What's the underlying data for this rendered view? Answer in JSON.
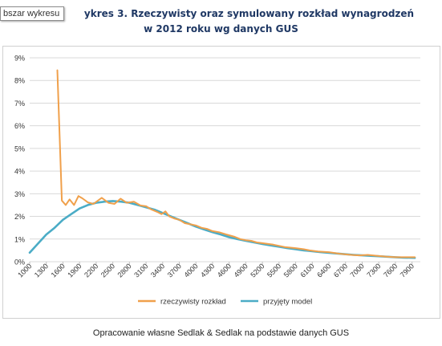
{
  "tooltip": {
    "text": "bszar wykresu"
  },
  "title": {
    "line1": "ykres 3. Rzeczywisty oraz symulowany rozkład wynagrodzeń",
    "line2": "w 2012 roku wg danych GUS"
  },
  "caption": "Opracowanie własne Sedlak & Sedlak na podstawie danych GUS",
  "colors": {
    "series1": "#F0A04B",
    "series2": "#4BACC6",
    "grid": "#D9D9D9",
    "axis_text": "#333333"
  },
  "chart_data": {
    "type": "line",
    "title": "",
    "xlabel": "",
    "ylabel": "",
    "x_range": [
      1000,
      8050
    ],
    "ylim": [
      0,
      9
    ],
    "y_ticks": [
      0,
      1,
      2,
      3,
      4,
      5,
      6,
      7,
      8,
      9
    ],
    "y_tick_labels": [
      "0%",
      "1%",
      "2%",
      "3%",
      "4%",
      "5%",
      "6%",
      "7%",
      "8%",
      "9%"
    ],
    "x_tick_labels": [
      "1000",
      "1300",
      "1600",
      "1900",
      "2200",
      "2500",
      "2800",
      "3100",
      "3400",
      "3700",
      "4000",
      "4300",
      "4600",
      "4900",
      "5200",
      "5500",
      "5800",
      "6100",
      "6400",
      "6700",
      "7000",
      "7300",
      "7600",
      "7900"
    ],
    "grid": true,
    "legend": "bottom",
    "series": [
      {
        "name": "rzeczywisty rozkład",
        "x": [
          1500,
          1580,
          1650,
          1720,
          1800,
          1880,
          1950,
          2050,
          2150,
          2300,
          2420,
          2530,
          2640,
          2750,
          2880,
          3000,
          3100,
          3200,
          3300,
          3380,
          3450,
          3520,
          3620,
          3700,
          3800,
          3900,
          4000,
          4100,
          4200,
          4300,
          4420,
          4550,
          4700,
          4800,
          4900,
          5000,
          5100,
          5200,
          5400,
          5600,
          5800,
          5950,
          6050,
          6200,
          6400,
          6600,
          6800,
          6950,
          7100,
          7300,
          7450,
          7600,
          7800,
          7950
        ],
        "values": [
          8.45,
          2.7,
          2.5,
          2.75,
          2.5,
          2.9,
          2.8,
          2.62,
          2.55,
          2.82,
          2.6,
          2.55,
          2.78,
          2.6,
          2.65,
          2.48,
          2.45,
          2.3,
          2.2,
          2.1,
          2.22,
          2.0,
          1.9,
          1.85,
          1.7,
          1.65,
          1.6,
          1.5,
          1.45,
          1.35,
          1.3,
          1.2,
          1.1,
          1.0,
          0.95,
          0.92,
          0.85,
          0.82,
          0.75,
          0.65,
          0.6,
          0.55,
          0.5,
          0.45,
          0.42,
          0.35,
          0.3,
          0.28,
          0.3,
          0.25,
          0.22,
          0.2,
          0.2,
          0.2
        ]
      },
      {
        "name": "przyjęty model",
        "x": [
          1000,
          1150,
          1300,
          1450,
          1600,
          1750,
          1900,
          2050,
          2200,
          2350,
          2500,
          2650,
          2800,
          2950,
          3100,
          3250,
          3400,
          3550,
          3700,
          3850,
          4000,
          4150,
          4300,
          4450,
          4600,
          4750,
          4900,
          5050,
          5200,
          5350,
          5500,
          5650,
          5800,
          5950,
          6100,
          6250,
          6400,
          6550,
          6700,
          6850,
          7000,
          7150,
          7300,
          7450,
          7600,
          7750,
          7950
        ],
        "values": [
          0.4,
          0.8,
          1.2,
          1.5,
          1.85,
          2.1,
          2.35,
          2.5,
          2.6,
          2.65,
          2.68,
          2.65,
          2.6,
          2.5,
          2.4,
          2.3,
          2.15,
          2.0,
          1.85,
          1.7,
          1.55,
          1.42,
          1.3,
          1.2,
          1.08,
          1.0,
          0.92,
          0.85,
          0.78,
          0.72,
          0.66,
          0.6,
          0.55,
          0.5,
          0.46,
          0.42,
          0.39,
          0.36,
          0.33,
          0.3,
          0.28,
          0.26,
          0.24,
          0.22,
          0.2,
          0.18,
          0.17
        ]
      }
    ]
  }
}
